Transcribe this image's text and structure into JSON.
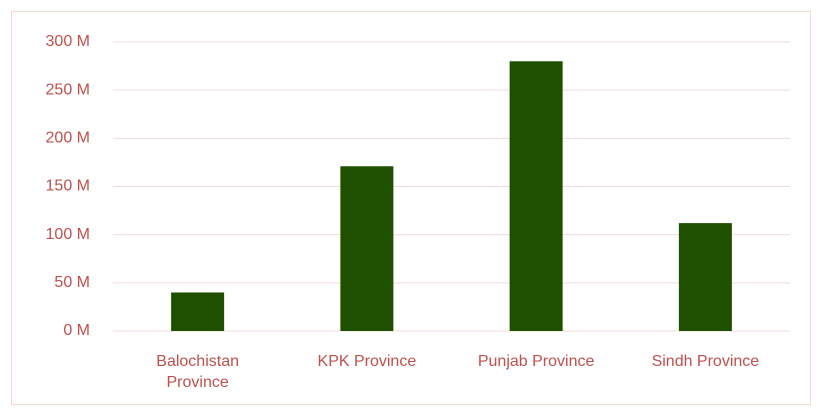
{
  "chart_data": {
    "type": "bar",
    "categories": [
      "Balochistan Province",
      "KPK Province",
      "Punjab Province",
      "Sindh Province"
    ],
    "values": [
      40,
      171,
      280,
      112
    ],
    "color": "#1e5000",
    "ylim": [
      0,
      300
    ],
    "yticks": [
      {
        "value": 0,
        "label": "0 M"
      },
      {
        "value": 50,
        "label": "50 M"
      },
      {
        "value": 100,
        "label": "100 M"
      },
      {
        "value": 150,
        "label": "150 M"
      },
      {
        "value": 200,
        "label": "200 M"
      },
      {
        "value": 250,
        "label": "250 M"
      },
      {
        "value": 300,
        "label": "300 M"
      }
    ],
    "grid": true
  }
}
